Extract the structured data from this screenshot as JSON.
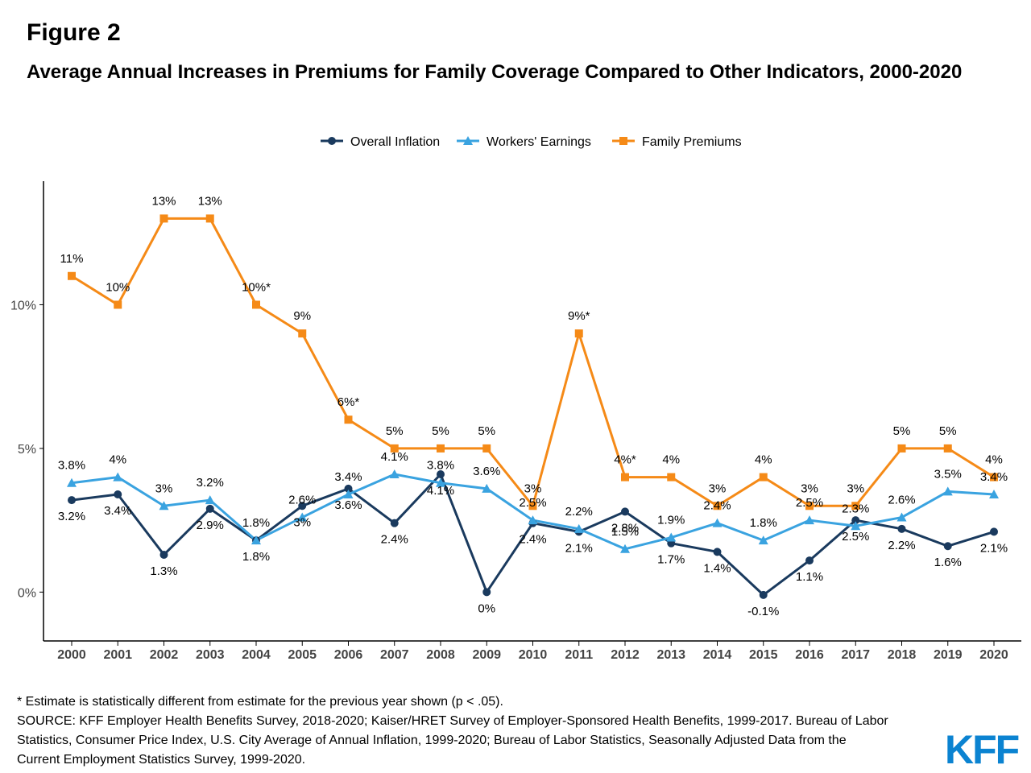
{
  "figure_label": "Figure 2",
  "title": "Average Annual Increases in Premiums for Family Coverage Compared to Other Indicators, 2000-2020",
  "chart_data": {
    "type": "line",
    "x": [
      "2000",
      "2001",
      "2002",
      "2003",
      "2004",
      "2005",
      "2006",
      "2007",
      "2008",
      "2009",
      "2010",
      "2011",
      "2012",
      "2013",
      "2014",
      "2015",
      "2016",
      "2017",
      "2018",
      "2019",
      "2020"
    ],
    "ylim": [
      -1.7,
      14.3
    ],
    "yticks": [
      0,
      5,
      10
    ],
    "ytick_labels": [
      "0%",
      "5%",
      "10%"
    ],
    "grid": false,
    "legend_position": "top-center",
    "series": [
      {
        "name": "Overall Inflation",
        "color": "#1a3a5e",
        "marker": "circle",
        "values": [
          3.2,
          3.4,
          1.3,
          2.9,
          1.8,
          3.0,
          3.6,
          2.4,
          4.1,
          0.0,
          2.4,
          2.1,
          2.8,
          1.7,
          1.4,
          -0.1,
          1.1,
          2.5,
          2.2,
          1.6,
          2.1
        ],
        "labels": [
          "3.2%",
          "3.4%",
          "1.3%",
          "2.9%",
          "1.8%",
          "3%",
          "3.6%",
          "2.4%",
          "4.1%",
          "0%",
          "2.4%",
          "2.1%",
          "2.8%",
          "1.7%",
          "1.4%",
          "-0.1%",
          "1.1%",
          "2.5%",
          "2.2%",
          "1.6%",
          "2.1%"
        ],
        "label_pos": [
          "below",
          "below",
          "below",
          "below",
          "below",
          "below",
          "below",
          "below",
          "below",
          "below",
          "below",
          "below",
          "below",
          "below",
          "below",
          "below",
          "below",
          "below",
          "below",
          "below",
          "below"
        ]
      },
      {
        "name": "Workers' Earnings",
        "color": "#3aa3e0",
        "marker": "triangle",
        "values": [
          3.8,
          4.0,
          3.0,
          3.2,
          1.8,
          2.6,
          3.4,
          4.1,
          3.8,
          3.6,
          2.5,
          2.2,
          1.5,
          1.9,
          2.4,
          1.8,
          2.5,
          2.3,
          2.6,
          3.5,
          3.4
        ],
        "labels": [
          "3.8%",
          "4%",
          "3%",
          "3.2%",
          "1.8%",
          "2.6%",
          "3.4%",
          "4.1%",
          "3.8%",
          "3.6%",
          "2.5%",
          "2.2%",
          "1.5%",
          "1.9%",
          "2.4%",
          "1.8%",
          "2.5%",
          "2.3%",
          "2.6%",
          "3.5%",
          "3.4%"
        ],
        "label_pos": [
          "above",
          "above",
          "above",
          "above",
          "above",
          "above",
          "above",
          "above",
          "above",
          "above",
          "above",
          "above",
          "above",
          "above",
          "above",
          "above",
          "above",
          "above",
          "above",
          "above",
          "above"
        ]
      },
      {
        "name": "Family Premiums",
        "color": "#f58a17",
        "marker": "square",
        "values": [
          11,
          10,
          13,
          13,
          10,
          9,
          6,
          5,
          5,
          5,
          3,
          9,
          4,
          4,
          3,
          4,
          3,
          3,
          5,
          5,
          4
        ],
        "labels": [
          "11%",
          "10%",
          "13%",
          "13%",
          "10%*",
          "9%",
          "6%*",
          "5%",
          "5%",
          "5%",
          "3%",
          "9%*",
          "4%*",
          "4%",
          "3%",
          "4%",
          "3%",
          "3%",
          "5%",
          "5%",
          "4%"
        ],
        "label_pos": [
          "above",
          "above",
          "above",
          "above",
          "above",
          "above",
          "above",
          "above",
          "above",
          "above",
          "above",
          "above",
          "above",
          "above",
          "above",
          "above",
          "above",
          "above",
          "above",
          "above",
          "above"
        ]
      }
    ]
  },
  "footnote": {
    "asterisk_note": "* Estimate is statistically different from estimate for the previous year shown (p < .05).",
    "source_line1": "SOURCE: KFF Employer Health Benefits Survey, 2018-2020; Kaiser/HRET Survey of Employer-Sponsored Health Benefits, 1999-2017. Bureau of Labor",
    "source_line2": "Statistics, Consumer Price Index, U.S. City Average of Annual Inflation, 1999-2020; Bureau of Labor Statistics, Seasonally Adjusted Data from the",
    "source_line3": "Current Employment Statistics Survey, 1999-2020."
  },
  "logo_text": "KFF",
  "colors": {
    "axis": "#000000",
    "tick_label": "#444444",
    "logo": "#0b83d1"
  }
}
